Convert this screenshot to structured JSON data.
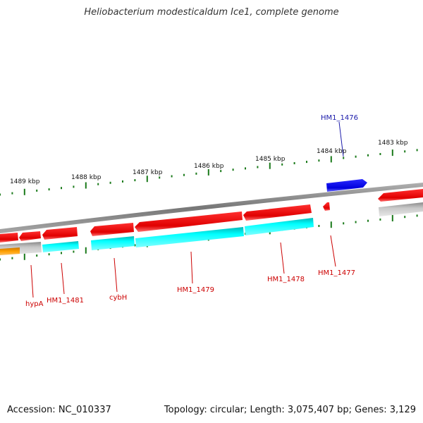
{
  "title": "Heliobacterium modesticaldum Ice1, complete genome",
  "footer": {
    "accession": "Accession: NC_010337",
    "info": "Topology: circular; Length: 3,075,407 bp; Genes: 3,129"
  },
  "colors": {
    "forward_gene": "#0000ee",
    "reverse_gene": "#ee0000",
    "cds_band": "#00eeee",
    "backbone": "#888888",
    "tick": "#1a7a1a",
    "label_forward": "#1a1aaa",
    "label_reverse": "#cc0000",
    "grey_feature": "#b8b8b8",
    "orange_feature": "#ee9900"
  },
  "scale": {
    "unit": "kbp",
    "ticks": [
      {
        "label": "1489 kbp"
      },
      {
        "label": "1488 kbp"
      },
      {
        "label": "1487 kbp"
      },
      {
        "label": "1486 kbp"
      },
      {
        "label": "1485 kbp"
      },
      {
        "label": "1484 kbp"
      },
      {
        "label": "1483 kbp"
      }
    ]
  },
  "genes": [
    {
      "id": "HM1_1476",
      "strand": "forward"
    },
    {
      "id": "HM1_1477",
      "strand": "reverse"
    },
    {
      "id": "HM1_1478",
      "strand": "reverse"
    },
    {
      "id": "HM1_1479",
      "strand": "reverse"
    },
    {
      "id": "cybH",
      "strand": "reverse"
    },
    {
      "id": "HM1_1481",
      "strand": "reverse"
    },
    {
      "id": "hypA",
      "strand": "reverse"
    }
  ]
}
